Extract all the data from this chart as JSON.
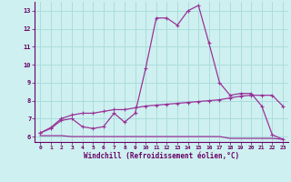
{
  "background_color": "#cff0f0",
  "grid_color": "#aadddd",
  "line_color": "#993399",
  "xlim": [
    -0.5,
    23.5
  ],
  "ylim": [
    5.7,
    13.5
  ],
  "yticks": [
    6,
    7,
    8,
    9,
    10,
    11,
    12,
    13
  ],
  "xticks": [
    0,
    1,
    2,
    3,
    4,
    5,
    6,
    7,
    8,
    9,
    10,
    11,
    12,
    13,
    14,
    15,
    16,
    17,
    18,
    19,
    20,
    21,
    22,
    23
  ],
  "xlabel": "Windchill (Refroidissement éolien,°C)",
  "series1_x": [
    0,
    1,
    2,
    3,
    4,
    5,
    6,
    7,
    8,
    9,
    10,
    11,
    12,
    13,
    14,
    15,
    16,
    17,
    18,
    19,
    20,
    21,
    22,
    23
  ],
  "series1_y": [
    6.2,
    6.45,
    6.9,
    7.0,
    6.55,
    6.45,
    6.55,
    7.3,
    6.8,
    7.3,
    9.8,
    12.6,
    12.6,
    12.2,
    13.0,
    13.3,
    11.2,
    9.0,
    8.3,
    8.4,
    8.4,
    7.7,
    6.1,
    5.85
  ],
  "series2_x": [
    0,
    1,
    2,
    3,
    4,
    5,
    6,
    7,
    8,
    9,
    10,
    11,
    12,
    13,
    14,
    15,
    16,
    17,
    18,
    19,
    20,
    21,
    22,
    23
  ],
  "series2_y": [
    6.2,
    6.5,
    7.0,
    7.2,
    7.3,
    7.3,
    7.4,
    7.5,
    7.5,
    7.6,
    7.7,
    7.75,
    7.8,
    7.85,
    7.9,
    7.95,
    8.0,
    8.05,
    8.15,
    8.25,
    8.3,
    8.3,
    8.3,
    7.7
  ],
  "series3_x": [
    0,
    1,
    2,
    3,
    4,
    5,
    6,
    7,
    8,
    9,
    10,
    11,
    12,
    13,
    14,
    15,
    16,
    17,
    18,
    19,
    20,
    21,
    22,
    23
  ],
  "series3_y": [
    6.05,
    6.05,
    6.05,
    6.0,
    6.0,
    6.0,
    6.0,
    6.0,
    6.0,
    6.0,
    6.0,
    6.0,
    6.0,
    6.0,
    6.0,
    6.0,
    6.0,
    6.0,
    5.9,
    5.9,
    5.9,
    5.9,
    5.9,
    5.85
  ]
}
